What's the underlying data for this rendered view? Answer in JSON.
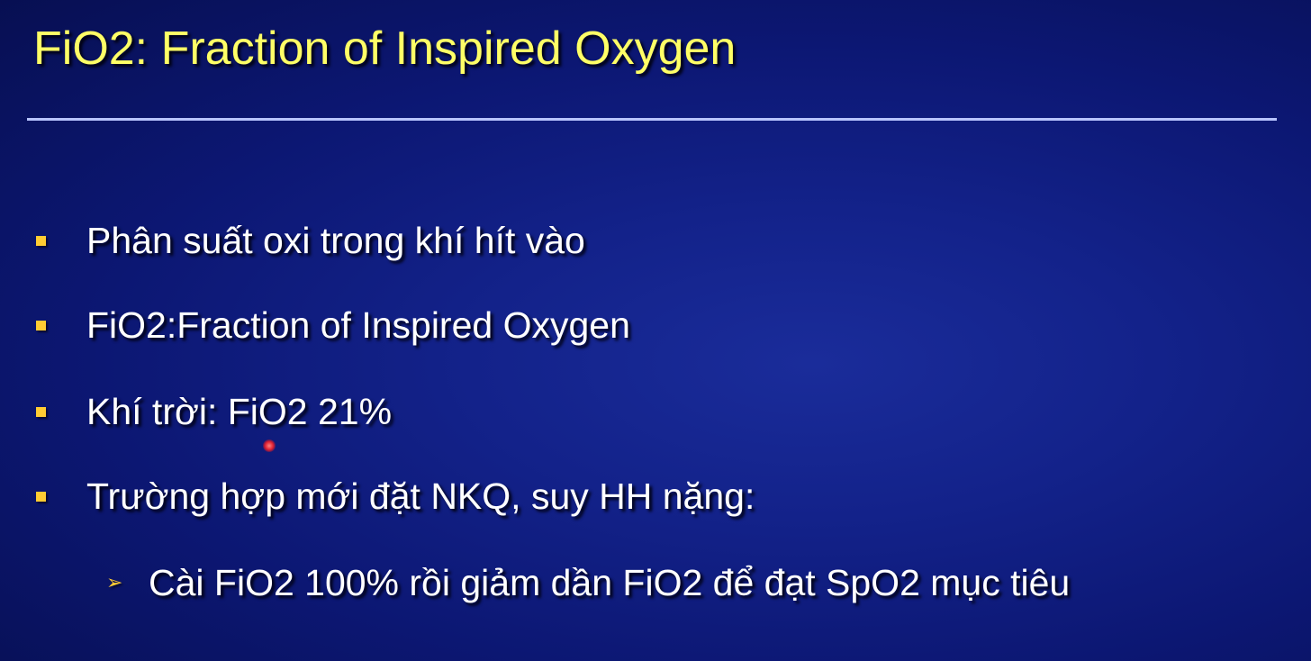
{
  "slide": {
    "title": "FiO2: Fraction of Inspired Oxygen",
    "bullets": [
      "Phân suất oxi trong khí hít vào",
      "FiO2:Fraction of Inspired Oxygen",
      "Khí trời: FiO2 21%",
      "Trường hợp mới đặt NKQ, suy HH nặng:"
    ],
    "sub_bullets": [
      "Cài FiO2 100% rồi giảm dần FiO2 để đạt SpO2 mục tiêu"
    ]
  },
  "colors": {
    "background": "#0c1773",
    "title": "#ffff66",
    "bullet_marker": "#ffcc33",
    "body_text": "#ffffff",
    "rule": "#b8c4ff"
  },
  "icons": {
    "bullet_marker": "square-bullet-icon",
    "sub_bullet_marker": "arrow-bullet-icon",
    "pointer": "laser-pointer-icon"
  }
}
